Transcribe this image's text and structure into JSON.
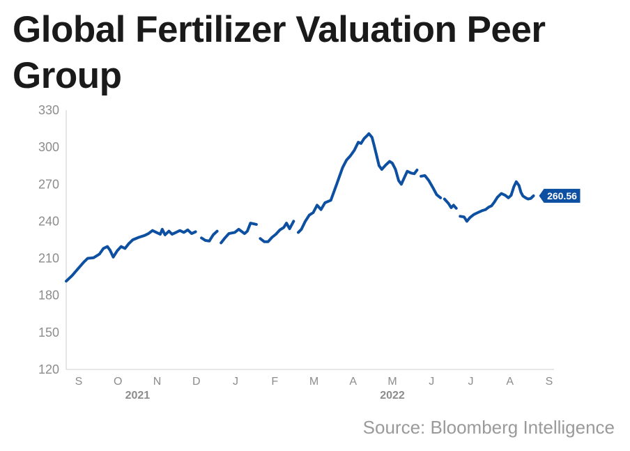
{
  "title": "Global Fertilizer Valuation Peer Group",
  "source": "Source: Bloomberg Intelligence",
  "colors": {
    "line": "#0d4fa0",
    "axis": "#cccccc",
    "text": "#8c8c8c"
  },
  "chart_data": {
    "type": "line",
    "title": "Global Fertilizer Valuation Peer Group",
    "xlabel": "",
    "ylabel": "",
    "ylim": [
      120,
      330
    ],
    "yticks": [
      120,
      150,
      180,
      210,
      240,
      270,
      300,
      330
    ],
    "grid": false,
    "x_labels": [
      "S",
      "O",
      "N",
      "D",
      "J",
      "F",
      "M",
      "A",
      "M",
      "J",
      "J",
      "A",
      "S"
    ],
    "year_labels": [
      {
        "label": "2021",
        "month_index": 1.5
      },
      {
        "label": "2022",
        "month_index": 8
      }
    ],
    "last_value_label": "260.56",
    "series": [
      {
        "values": [
          [
            0.0,
            191.5
          ],
          [
            0.15,
            196.0
          ],
          [
            0.3,
            201.5
          ],
          [
            0.45,
            207.0
          ],
          [
            0.55,
            210.0
          ],
          [
            0.7,
            210.5
          ],
          [
            0.85,
            213.5
          ],
          [
            0.95,
            218.0
          ],
          [
            1.05,
            219.5
          ],
          [
            1.12,
            216.5
          ],
          [
            1.2,
            211.0
          ],
          [
            1.3,
            216.0
          ],
          [
            1.4,
            219.5
          ],
          [
            1.5,
            218.0
          ],
          [
            1.6,
            222.0
          ],
          [
            1.7,
            225.0
          ],
          [
            1.85,
            227.0
          ],
          [
            2.0,
            228.5
          ],
          [
            2.1,
            230.0
          ],
          [
            2.2,
            232.5
          ],
          [
            2.3,
            231.0
          ],
          [
            2.4,
            229.5
          ],
          [
            2.45,
            233.5
          ],
          [
            2.52,
            229.0
          ],
          [
            2.62,
            232.0
          ],
          [
            2.7,
            229.5
          ],
          [
            2.8,
            231.0
          ],
          [
            2.9,
            232.5
          ],
          [
            3.0,
            231.0
          ],
          [
            3.1,
            233.0
          ],
          [
            3.2,
            230.0
          ],
          [
            3.3,
            231.5
          ],
          null,
          [
            3.45,
            226.5
          ],
          [
            3.55,
            224.5
          ],
          [
            3.65,
            224.0
          ],
          [
            3.75,
            229.0
          ],
          [
            3.85,
            232.0
          ],
          null,
          [
            3.95,
            222.5
          ],
          [
            4.05,
            226.5
          ],
          [
            4.15,
            230.0
          ],
          [
            4.3,
            231.0
          ],
          [
            4.4,
            233.5
          ],
          [
            4.55,
            230.0
          ],
          [
            4.62,
            232.0
          ],
          [
            4.7,
            238.5
          ],
          [
            4.85,
            237.5
          ],
          null,
          [
            4.95,
            226.0
          ],
          [
            5.05,
            223.5
          ],
          [
            5.15,
            223.5
          ],
          [
            5.25,
            227.0
          ],
          [
            5.35,
            229.5
          ],
          [
            5.45,
            233.0
          ],
          [
            5.55,
            235.0
          ],
          [
            5.62,
            238.5
          ],
          [
            5.7,
            234.0
          ],
          [
            5.8,
            240.0
          ],
          null,
          [
            5.92,
            231.0
          ],
          [
            6.0,
            233.5
          ],
          [
            6.1,
            240.0
          ],
          [
            6.2,
            245.0
          ],
          [
            6.3,
            247.0
          ],
          [
            6.4,
            253.0
          ],
          [
            6.5,
            249.5
          ],
          [
            6.6,
            255.0
          ],
          [
            6.75,
            257.0
          ],
          [
            6.9,
            270.0
          ],
          [
            7.05,
            283.5
          ],
          [
            7.15,
            289.5
          ],
          [
            7.25,
            293.0
          ],
          [
            7.35,
            297.5
          ],
          [
            7.45,
            304.0
          ],
          [
            7.52,
            303.0
          ],
          [
            7.6,
            307.0
          ],
          [
            7.68,
            309.5
          ],
          [
            7.72,
            311.0
          ],
          [
            7.8,
            308.0
          ],
          [
            7.85,
            302.0
          ],
          [
            7.92,
            293.0
          ],
          [
            7.98,
            285.0
          ],
          [
            8.05,
            282.0
          ],
          [
            8.15,
            285.5
          ],
          [
            8.25,
            288.5
          ],
          [
            8.32,
            287.0
          ],
          [
            8.4,
            282.0
          ],
          [
            8.48,
            273.0
          ],
          [
            8.55,
            270.0
          ],
          [
            8.62,
            275.0
          ],
          [
            8.7,
            280.5
          ],
          [
            8.8,
            279.0
          ],
          [
            8.88,
            278.5
          ],
          [
            8.95,
            281.5
          ],
          null,
          [
            9.05,
            276.5
          ],
          [
            9.15,
            277.0
          ],
          [
            9.25,
            273.0
          ],
          [
            9.35,
            267.5
          ],
          [
            9.45,
            261.5
          ],
          [
            9.55,
            259.0
          ],
          null,
          [
            9.65,
            258.0
          ],
          [
            9.75,
            254.5
          ],
          [
            9.82,
            251.0
          ],
          [
            9.88,
            253.0
          ],
          [
            9.95,
            250.5
          ],
          null,
          [
            10.05,
            244.0
          ],
          [
            10.15,
            243.5
          ],
          [
            10.22,
            240.0
          ],
          [
            10.3,
            243.0
          ],
          [
            10.4,
            245.5
          ],
          [
            10.5,
            247.0
          ],
          [
            10.6,
            248.5
          ],
          [
            10.7,
            249.5
          ],
          [
            10.78,
            251.5
          ],
          [
            10.85,
            252.5
          ],
          [
            10.92,
            255.5
          ],
          [
            11.0,
            259.5
          ],
          [
            11.1,
            262.5
          ],
          [
            11.2,
            261.0
          ],
          [
            11.28,
            259.0
          ],
          [
            11.35,
            261.0
          ],
          [
            11.42,
            268.0
          ],
          [
            11.48,
            272.0
          ],
          [
            11.55,
            269.0
          ],
          [
            11.6,
            263.5
          ],
          [
            11.65,
            260.5
          ],
          [
            11.72,
            259.0
          ],
          [
            11.78,
            258.0
          ],
          [
            11.85,
            258.5
          ],
          [
            11.92,
            260.6
          ]
        ]
      }
    ]
  }
}
